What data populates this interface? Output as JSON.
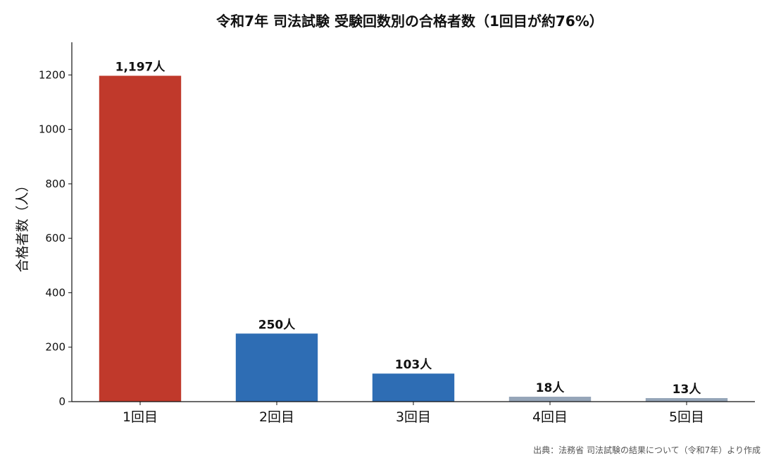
{
  "chart_data": {
    "type": "bar",
    "title": "令和7年 司法試験 受験回数別の合格者数（1回目が約76%）",
    "ylabel": "合格者数（人）",
    "categories": [
      "1回目",
      "2回目",
      "3回目",
      "4回目",
      "5回目"
    ],
    "values": [
      1197,
      250,
      103,
      18,
      13
    ],
    "data_labels": [
      "1,197人",
      "250人",
      "103人",
      "18人",
      "13人"
    ],
    "colors": [
      "#c0392b",
      "#2e6db4",
      "#2e6db4",
      "#95a5b8",
      "#95a5b8"
    ],
    "ylim": [
      0,
      1320
    ],
    "yticks": [
      0,
      200,
      400,
      600,
      800,
      1000,
      1200
    ],
    "grid": false,
    "legend": "none"
  },
  "source": "出典：法務省 司法試験の結果について（令和7年）より作成"
}
